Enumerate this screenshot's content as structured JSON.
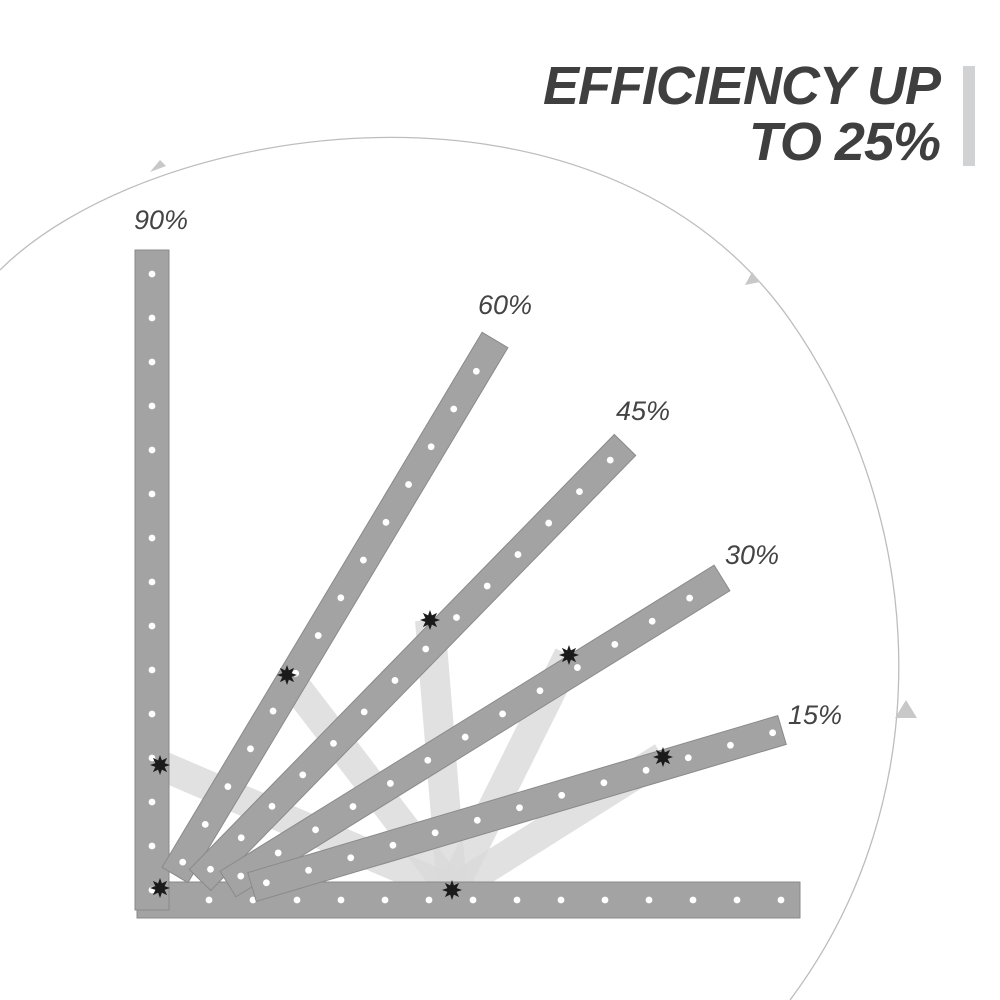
{
  "title": {
    "line1": "EFFICIENCY UP",
    "line2": "TO 25%"
  },
  "angle_labels": [
    "90%",
    "60%",
    "45%",
    "30%",
    "15%"
  ],
  "colors": {
    "bar": "#a3a3a3",
    "bar_edge": "#8a8a8a",
    "text": "#3f3f3f",
    "arc": "#bdbdbd",
    "accent_bar": "#d0d2d3"
  }
}
